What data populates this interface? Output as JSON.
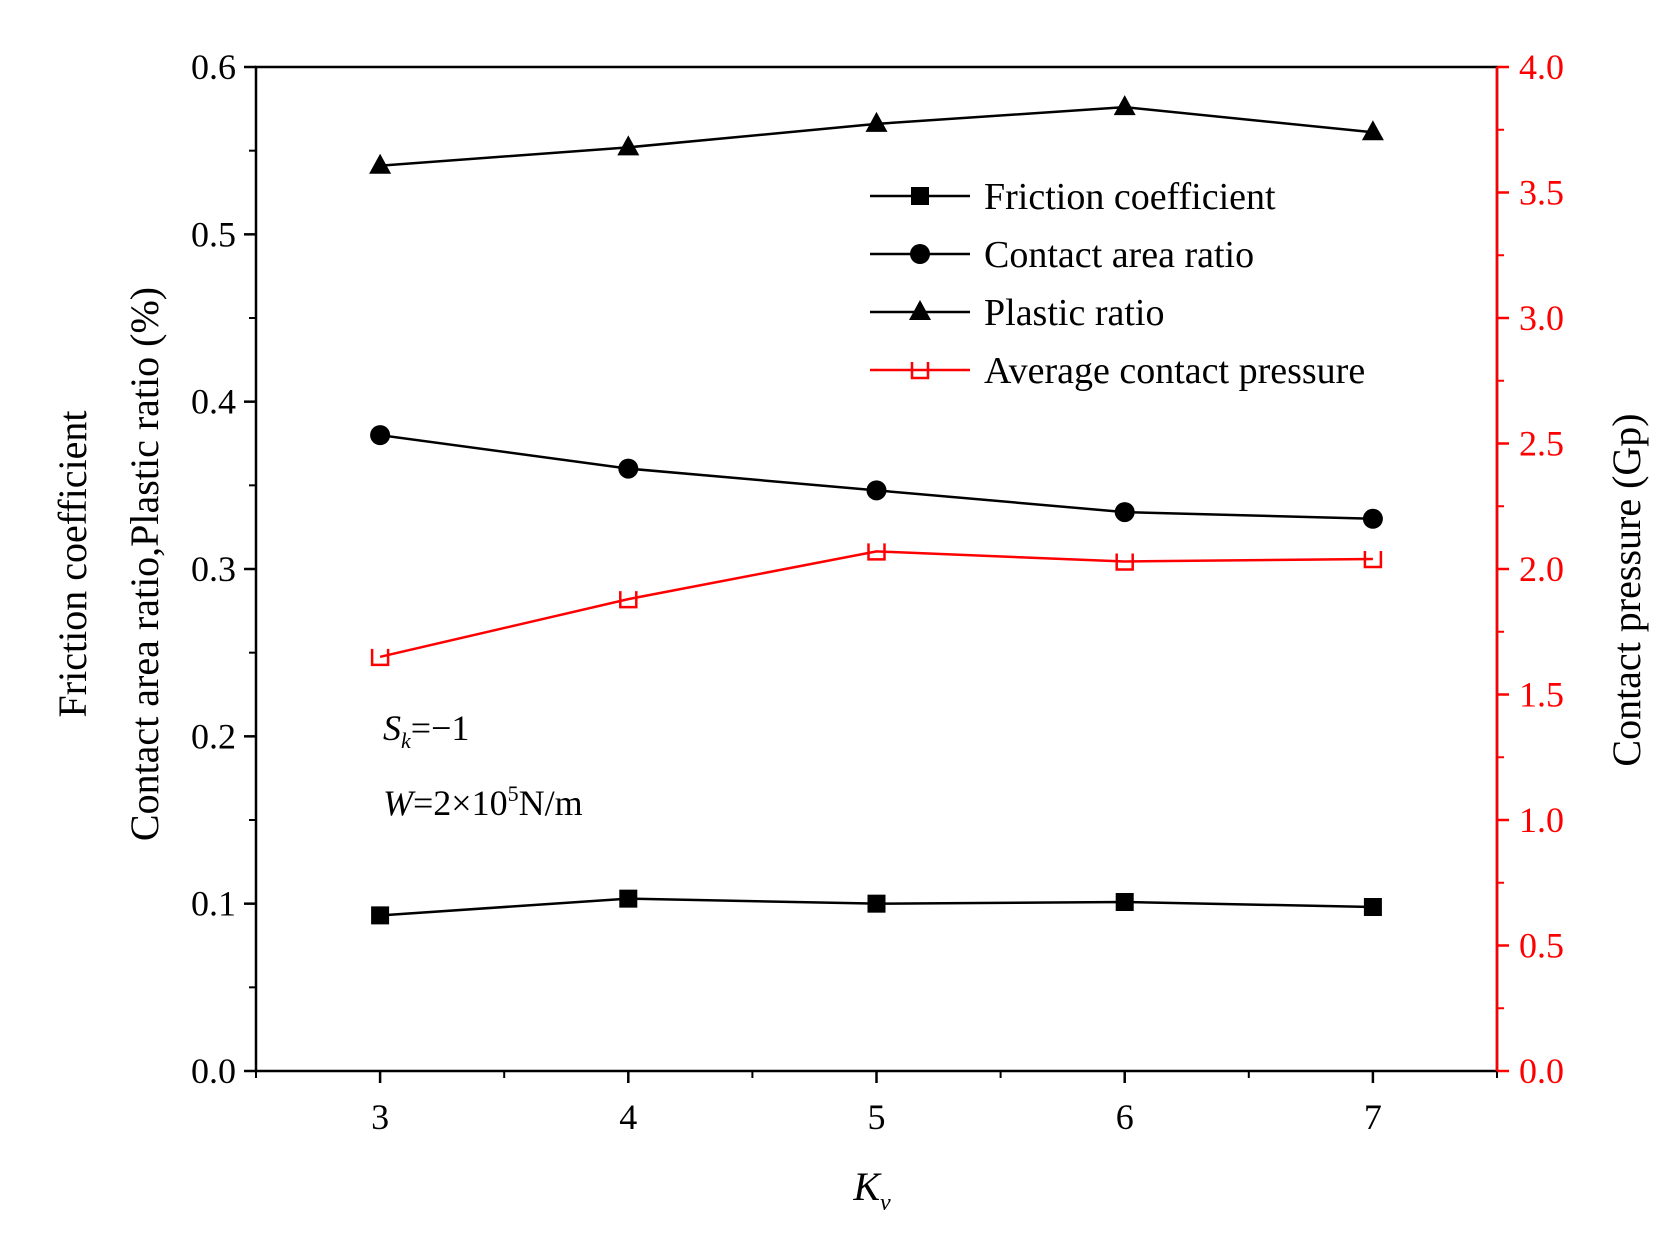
{
  "chart_data": {
    "type": "line",
    "x": [
      3,
      4,
      5,
      6,
      7
    ],
    "xlabel": {
      "main": "K",
      "sub": "v"
    },
    "xlim": [
      2.5,
      7.5
    ],
    "xticks": [
      3,
      4,
      5,
      6,
      7
    ],
    "y_left": {
      "label_lines": [
        "Friction coefficient",
        "Contact area ratio,Plastic ratio (%)"
      ],
      "lim": [
        0.0,
        0.6
      ],
      "ticks": [
        "0.0",
        "0.1",
        "0.2",
        "0.3",
        "0.4",
        "0.5",
        "0.6"
      ]
    },
    "y_right": {
      "label": "Contact pressure (Gp)",
      "lim": [
        0.0,
        4.0
      ],
      "ticks": [
        "0.0",
        "0.5",
        "1.0",
        "1.5",
        "2.0",
        "2.5",
        "3.0",
        "3.5",
        "4.0"
      ],
      "color": "#ff0000"
    },
    "series": [
      {
        "name": "Friction coefficient",
        "axis": "left",
        "marker": "square",
        "color": "#000000",
        "values": [
          0.093,
          0.103,
          0.1,
          0.101,
          0.098
        ]
      },
      {
        "name": "Contact area ratio",
        "axis": "left",
        "marker": "circle",
        "color": "#000000",
        "values": [
          0.38,
          0.36,
          0.347,
          0.334,
          0.33
        ]
      },
      {
        "name": "Plastic ratio",
        "axis": "left",
        "marker": "triangle",
        "color": "#000000",
        "values": [
          0.541,
          0.552,
          0.566,
          0.576,
          0.561
        ]
      },
      {
        "name": "Average contact pressure",
        "axis": "right",
        "marker": "half-square",
        "color": "#ff0000",
        "values": [
          1.65,
          1.88,
          2.07,
          2.03,
          2.04
        ]
      }
    ],
    "annotations": [
      {
        "main": "S",
        "sub": "k",
        "rest": "=−1"
      },
      {
        "main": "W",
        "rest": "=2×10",
        "sup": "5",
        "tail": "N/m"
      }
    ],
    "legend_position": "top-right",
    "grid": false
  }
}
